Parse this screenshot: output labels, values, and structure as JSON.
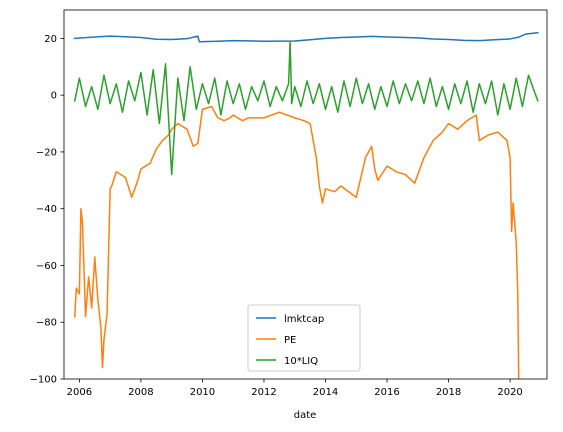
{
  "chart_data": {
    "type": "line",
    "xlabel": "date",
    "ylabel": "",
    "title": "",
    "xlim": [
      2005.5,
      2021.2
    ],
    "ylim": [
      -100,
      30
    ],
    "x_ticks": [
      2006,
      2008,
      2010,
      2012,
      2014,
      2016,
      2018,
      2020
    ],
    "x_tick_labels": [
      "2006",
      "2008",
      "2010",
      "2012",
      "2014",
      "2016",
      "2018",
      "2020"
    ],
    "y_ticks": [
      20,
      0,
      -20,
      -40,
      -60,
      -80,
      -100
    ],
    "y_tick_labels": [
      "20",
      "0",
      "−20",
      "−40",
      "−60",
      "−80",
      "−100"
    ],
    "grid": false,
    "legend_position": "lower-center",
    "series": [
      {
        "name": "lmktcap",
        "color": "#1f77b4",
        "x": [
          2005.85,
          2006.5,
          2007.0,
          2008.0,
          2008.5,
          2009.0,
          2009.5,
          2009.85,
          2009.9,
          2010.5,
          2011.0,
          2012.0,
          2013.0,
          2013.5,
          2014.0,
          2014.5,
          2015.0,
          2015.5,
          2016.0,
          2017.0,
          2017.5,
          2018.0,
          2018.5,
          2019.0,
          2019.5,
          2020.0,
          2020.3,
          2020.5,
          2020.9
        ],
        "y": [
          20.0,
          20.5,
          20.8,
          20.3,
          19.7,
          19.6,
          19.9,
          20.8,
          18.8,
          19.0,
          19.2,
          19.0,
          19.1,
          19.5,
          20.0,
          20.3,
          20.5,
          20.7,
          20.5,
          20.2,
          19.8,
          19.6,
          19.3,
          19.2,
          19.5,
          19.8,
          20.5,
          21.5,
          22.0
        ]
      },
      {
        "name": "PE",
        "color": "#ff7f0e",
        "x": [
          2005.85,
          2005.9,
          2006.0,
          2006.05,
          2006.1,
          2006.2,
          2006.3,
          2006.4,
          2006.5,
          2006.6,
          2006.7,
          2006.75,
          2006.8,
          2006.9,
          2007.0,
          2007.05,
          2007.2,
          2007.5,
          2007.7,
          2007.9,
          2008.0,
          2008.3,
          2008.5,
          2008.7,
          2008.9,
          2009.0,
          2009.2,
          2009.5,
          2009.7,
          2009.85,
          2010.0,
          2010.3,
          2010.5,
          2010.7,
          2010.9,
          2011.0,
          2011.3,
          2011.5,
          2012.0,
          2012.5,
          2013.0,
          2013.3,
          2013.5,
          2013.7,
          2013.8,
          2013.9,
          2014.0,
          2014.3,
          2014.5,
          2015.0,
          2015.3,
          2015.5,
          2015.6,
          2015.7,
          2016.0,
          2016.3,
          2016.6,
          2016.9,
          2017.2,
          2017.5,
          2017.8,
          2018.0,
          2018.3,
          2018.6,
          2018.9,
          2019.0,
          2019.3,
          2019.6,
          2019.9,
          2020.0,
          2020.05,
          2020.1,
          2020.15,
          2020.2,
          2020.25,
          2020.28
        ],
        "y": [
          -78,
          -68,
          -70,
          -40,
          -45,
          -78,
          -64,
          -75,
          -57,
          -72,
          -82,
          -96,
          -86,
          -77,
          -33,
          -32,
          -27,
          -29,
          -36,
          -30,
          -26,
          -24,
          -19,
          -16,
          -14,
          -12,
          -10,
          -12,
          -18,
          -17,
          -5,
          -4,
          -8,
          -9,
          -8,
          -7,
          -9,
          -8,
          -8,
          -6,
          -8,
          -9,
          -10,
          -22,
          -32,
          -38,
          -33,
          -34,
          -32,
          -36,
          -22,
          -18,
          -26,
          -30,
          -25,
          -27,
          -28,
          -31,
          -22,
          -16,
          -13,
          -10,
          -12,
          -9,
          -7,
          -16,
          -14,
          -13,
          -16,
          -22,
          -48,
          -38,
          -45,
          -52,
          -70,
          -100
        ]
      },
      {
        "name": "10*LIQ",
        "color": "#2ca02c",
        "x": [
          2005.85,
          2006.0,
          2006.2,
          2006.4,
          2006.6,
          2006.8,
          2007.0,
          2007.2,
          2007.4,
          2007.6,
          2007.8,
          2008.0,
          2008.2,
          2008.4,
          2008.6,
          2008.8,
          2009.0,
          2009.2,
          2009.4,
          2009.6,
          2009.8,
          2010.0,
          2010.2,
          2010.4,
          2010.6,
          2010.8,
          2011.0,
          2011.2,
          2011.4,
          2011.6,
          2011.8,
          2012.0,
          2012.2,
          2012.4,
          2012.6,
          2012.8,
          2012.85,
          2012.9,
          2013.0,
          2013.2,
          2013.4,
          2013.6,
          2013.8,
          2014.0,
          2014.2,
          2014.4,
          2014.6,
          2014.8,
          2015.0,
          2015.2,
          2015.4,
          2015.6,
          2015.8,
          2016.0,
          2016.2,
          2016.4,
          2016.6,
          2016.8,
          2017.0,
          2017.2,
          2017.4,
          2017.6,
          2017.8,
          2018.0,
          2018.2,
          2018.4,
          2018.6,
          2018.8,
          2019.0,
          2019.2,
          2019.4,
          2019.6,
          2019.8,
          2020.0,
          2020.2,
          2020.4,
          2020.6,
          2020.9
        ],
        "y": [
          -2,
          6,
          -4,
          3,
          -5,
          7,
          -3,
          4,
          -6,
          5,
          -2,
          8,
          -7,
          9,
          -10,
          11,
          -28,
          6,
          -9,
          10,
          -5,
          4,
          -3,
          6,
          -7,
          5,
          -3,
          4,
          -5,
          3,
          -2,
          5,
          -4,
          3,
          -2,
          4,
          19,
          -3,
          3,
          -4,
          5,
          -3,
          4,
          -5,
          3,
          -6,
          5,
          -4,
          6,
          -3,
          4,
          -5,
          3,
          -4,
          5,
          -3,
          4,
          -2,
          5,
          -3,
          6,
          -4,
          3,
          -5,
          4,
          -3,
          5,
          -6,
          4,
          -3,
          5,
          -7,
          4,
          -5,
          6,
          -4,
          7,
          -2
        ]
      }
    ]
  }
}
